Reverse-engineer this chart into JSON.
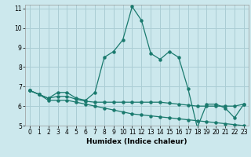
{
  "title": "",
  "xlabel": "Humidex (Indice chaleur)",
  "background_color": "#cce8ed",
  "grid_color": "#aacdd4",
  "line_color": "#1a7a6e",
  "xlim": [
    -0.5,
    23.5
  ],
  "ylim": [
    5,
    11.2
  ],
  "xticks": [
    0,
    1,
    2,
    3,
    4,
    5,
    6,
    7,
    8,
    9,
    10,
    11,
    12,
    13,
    14,
    15,
    16,
    17,
    18,
    19,
    20,
    21,
    22,
    23
  ],
  "yticks": [
    5,
    6,
    7,
    8,
    9,
    10,
    11
  ],
  "line1_x": [
    0,
    1,
    2,
    3,
    4,
    5,
    6,
    7,
    8,
    9,
    10,
    11,
    12,
    13,
    14,
    15,
    16,
    17,
    18,
    19,
    20,
    21,
    22,
    23
  ],
  "line1_y": [
    6.8,
    6.6,
    6.4,
    6.7,
    6.7,
    6.4,
    6.3,
    6.7,
    8.5,
    8.8,
    9.4,
    11.1,
    10.4,
    8.7,
    8.4,
    8.8,
    8.5,
    6.9,
    4.9,
    6.1,
    6.1,
    5.9,
    5.4,
    6.1
  ],
  "line2_x": [
    0,
    1,
    2,
    3,
    4,
    5,
    6,
    7,
    8,
    9,
    10,
    11,
    12,
    13,
    14,
    15,
    16,
    17,
    18,
    19,
    20,
    21,
    22,
    23
  ],
  "line2_y": [
    6.8,
    6.6,
    6.4,
    6.5,
    6.5,
    6.35,
    6.25,
    6.2,
    6.2,
    6.2,
    6.2,
    6.2,
    6.2,
    6.2,
    6.2,
    6.15,
    6.1,
    6.05,
    6.0,
    6.0,
    6.0,
    6.0,
    6.0,
    6.1
  ],
  "line3_x": [
    0,
    1,
    2,
    3,
    4,
    5,
    6,
    7,
    8,
    9,
    10,
    11,
    12,
    13,
    14,
    15,
    16,
    17,
    18,
    19,
    20,
    21,
    22,
    23
  ],
  "line3_y": [
    6.8,
    6.6,
    6.3,
    6.3,
    6.3,
    6.2,
    6.1,
    6.0,
    5.9,
    5.8,
    5.7,
    5.6,
    5.55,
    5.5,
    5.45,
    5.4,
    5.35,
    5.3,
    5.25,
    5.2,
    5.15,
    5.1,
    5.05,
    5.0
  ],
  "tick_fontsize": 5.5,
  "label_fontsize": 6.5
}
